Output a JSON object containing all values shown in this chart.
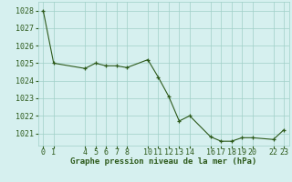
{
  "x": [
    0,
    1,
    4,
    5,
    6,
    7,
    8,
    10,
    11,
    12,
    13,
    14,
    16,
    17,
    18,
    19,
    20,
    22,
    23
  ],
  "y": [
    1028.0,
    1025.0,
    1024.7,
    1025.0,
    1024.85,
    1024.85,
    1024.75,
    1025.2,
    1024.2,
    1023.1,
    1021.7,
    1022.0,
    1020.8,
    1020.55,
    1020.55,
    1020.75,
    1020.75,
    1020.65,
    1021.2
  ],
  "line_color": "#2d5a1b",
  "marker": "+",
  "bg_color": "#d6f0ef",
  "grid_color": "#a0cfc8",
  "xlabel": "Graphe pression niveau de la mer (hPa)",
  "xticks": [
    0,
    1,
    4,
    5,
    6,
    7,
    8,
    10,
    11,
    12,
    13,
    14,
    16,
    17,
    18,
    19,
    20,
    22,
    23
  ],
  "yticks": [
    1021,
    1022,
    1023,
    1024,
    1025,
    1026,
    1027,
    1028
  ],
  "ylim": [
    1020.3,
    1028.5
  ],
  "xlim": [
    -0.5,
    23.5
  ],
  "xlabel_fontsize": 6.5,
  "tick_fontsize": 6.0,
  "tick_color": "#2d5a1b",
  "markersize": 3.5,
  "linewidth": 0.8
}
